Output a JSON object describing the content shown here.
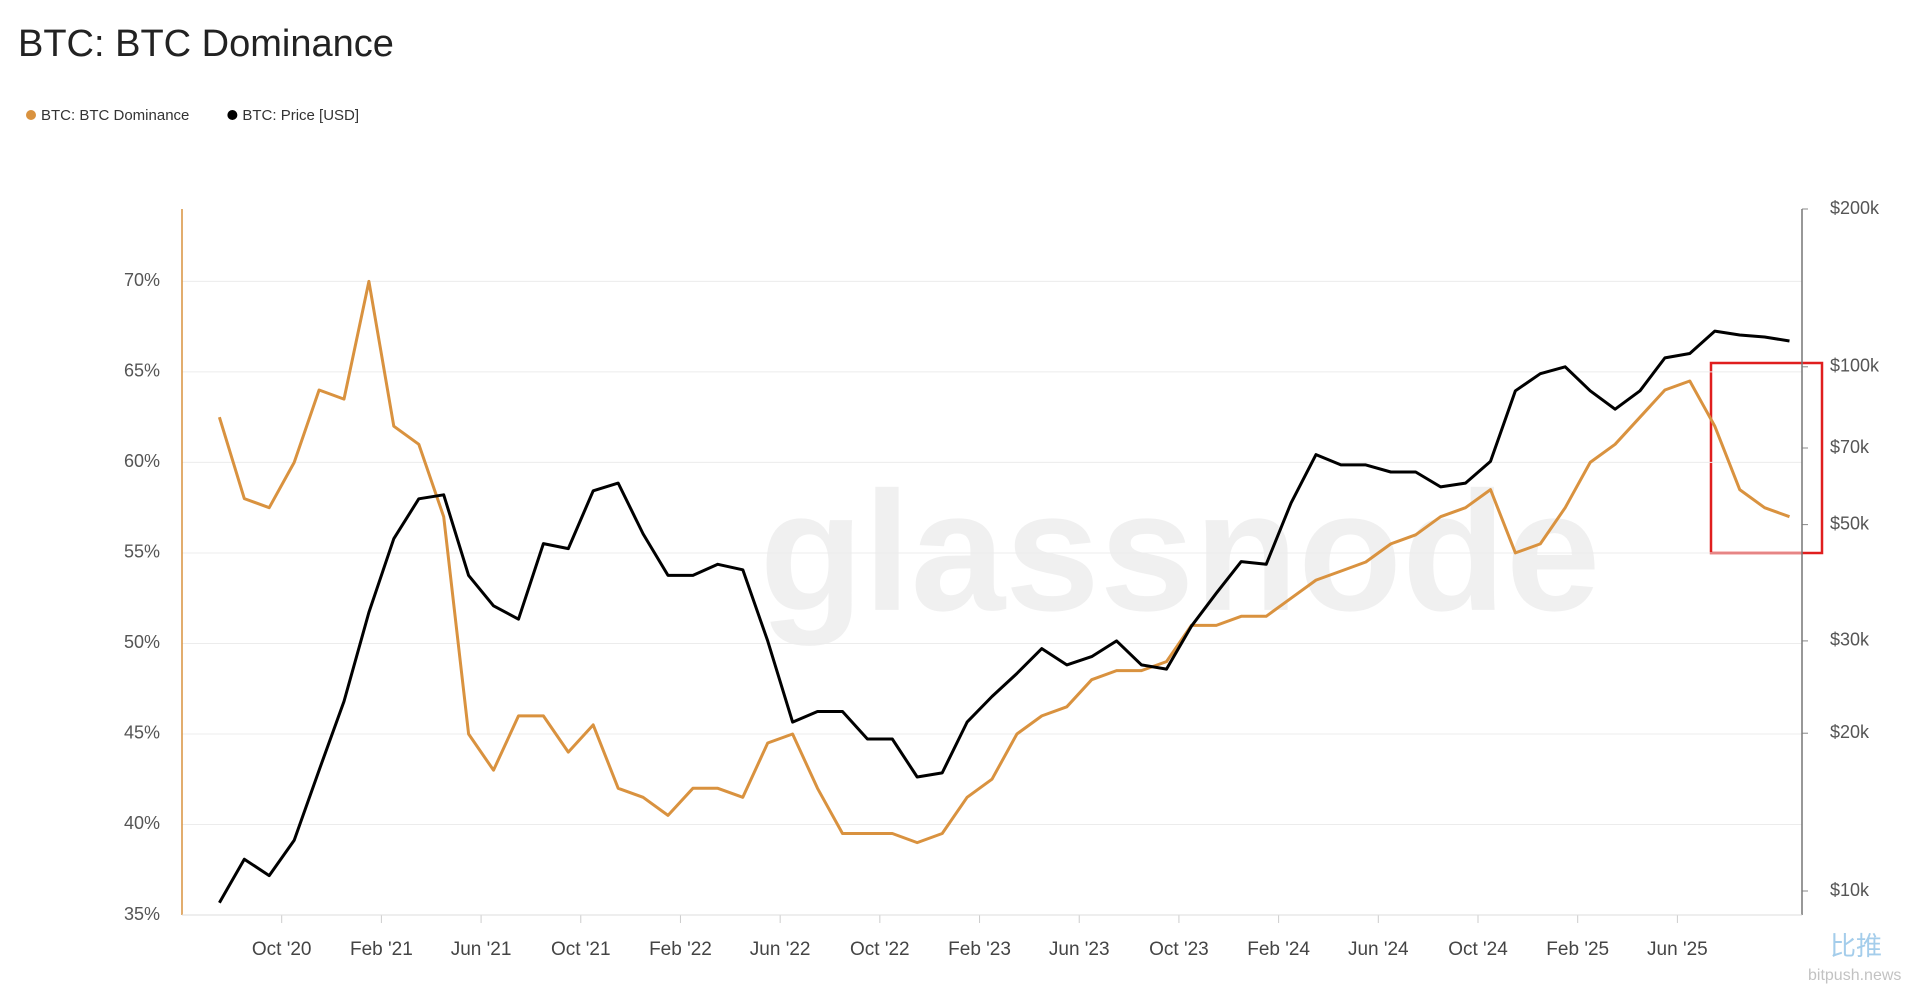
{
  "chart_data": {
    "type": "line",
    "title": "BTC: BTC Dominance",
    "watermark": "glassnode",
    "watermark2": "比推",
    "watermark3": "bitpush.news",
    "x": [
      "2020-07",
      "2020-08",
      "2020-09",
      "2020-10",
      "2020-11",
      "2020-12",
      "2021-01",
      "2021-02",
      "2021-03",
      "2021-04",
      "2021-05",
      "2021-06",
      "2021-07",
      "2021-08",
      "2021-09",
      "2021-10",
      "2021-11",
      "2021-12",
      "2022-01",
      "2022-02",
      "2022-03",
      "2022-04",
      "2022-05",
      "2022-06",
      "2022-07",
      "2022-08",
      "2022-09",
      "2022-10",
      "2022-11",
      "2022-12",
      "2023-01",
      "2023-02",
      "2023-03",
      "2023-04",
      "2023-05",
      "2023-06",
      "2023-07",
      "2023-08",
      "2023-09",
      "2023-10",
      "2023-11",
      "2023-12",
      "2024-01",
      "2024-02",
      "2024-03",
      "2024-04",
      "2024-05",
      "2024-06",
      "2024-07",
      "2024-08",
      "2024-09",
      "2024-10",
      "2024-11",
      "2024-12",
      "2025-01",
      "2025-02",
      "2025-03",
      "2025-04",
      "2025-05",
      "2025-06",
      "2025-07",
      "2025-08",
      "2025-09",
      "2025-10"
    ],
    "xlim": [
      "2020-06",
      "2025-11"
    ],
    "xticks": [
      {
        "value": "2020-10",
        "label": "Oct '20"
      },
      {
        "value": "2021-02",
        "label": "Feb '21"
      },
      {
        "value": "2021-06",
        "label": "Jun '21"
      },
      {
        "value": "2021-10",
        "label": "Oct '21"
      },
      {
        "value": "2022-02",
        "label": "Feb '22"
      },
      {
        "value": "2022-06",
        "label": "Jun '22"
      },
      {
        "value": "2022-10",
        "label": "Oct '22"
      },
      {
        "value": "2023-02",
        "label": "Feb '23"
      },
      {
        "value": "2023-06",
        "label": "Jun '23"
      },
      {
        "value": "2023-10",
        "label": "Oct '23"
      },
      {
        "value": "2024-02",
        "label": "Feb '24"
      },
      {
        "value": "2024-06",
        "label": "Jun '24"
      },
      {
        "value": "2024-10",
        "label": "Oct '24"
      },
      {
        "value": "2025-02",
        "label": "Feb '25"
      },
      {
        "value": "2025-06",
        "label": "Jun '25"
      }
    ],
    "ylim": [
      35,
      74
    ],
    "yticks": [
      {
        "value": 35,
        "label": "35%"
      },
      {
        "value": 40,
        "label": "40%"
      },
      {
        "value": 45,
        "label": "45%"
      },
      {
        "value": 50,
        "label": "50%"
      },
      {
        "value": 55,
        "label": "55%"
      },
      {
        "value": 60,
        "label": "60%"
      },
      {
        "value": 65,
        "label": "65%"
      },
      {
        "value": 70,
        "label": "70%"
      }
    ],
    "y2lim": [
      9000,
      200000
    ],
    "y2log": true,
    "y2ticks": [
      {
        "value": 10000,
        "label": "$10k"
      },
      {
        "value": 20000,
        "label": "$20k"
      },
      {
        "value": 30000,
        "label": "$30k"
      },
      {
        "value": 50000,
        "label": "$50k"
      },
      {
        "value": 70000,
        "label": "$70k"
      },
      {
        "value": 100000,
        "label": "$100k"
      },
      {
        "value": 200000,
        "label": "$200k"
      }
    ],
    "grid": true,
    "series": [
      {
        "name": "BTC: BTC Dominance",
        "color": "#d9923f",
        "values": [
          62.5,
          58,
          57.5,
          60,
          64,
          63.5,
          70,
          62,
          61,
          57,
          45,
          43,
          46,
          46,
          44,
          45.5,
          42,
          41.5,
          40.5,
          42,
          42,
          41.5,
          44.5,
          45,
          42,
          39.5,
          39.5,
          39.5,
          39,
          39.5,
          41.5,
          42.5,
          45,
          46,
          46.5,
          48,
          48.5,
          48.5,
          49,
          51,
          51,
          51.5,
          51.5,
          52.5,
          53.5,
          54,
          54.5,
          55.5,
          56,
          57,
          57.5,
          58.5,
          55,
          55.5,
          57.5,
          60,
          61,
          62.5,
          64,
          64.5,
          62,
          58.5,
          57.5,
          57
        ]
      },
      {
        "name": "BTC: Price [USD]",
        "color": "#000000",
        "axis": "y2",
        "values": [
          9500,
          11500,
          10700,
          12500,
          17000,
          23000,
          34000,
          47000,
          56000,
          57000,
          40000,
          35000,
          33000,
          46000,
          45000,
          58000,
          60000,
          48000,
          40000,
          40000,
          42000,
          41000,
          30000,
          21000,
          22000,
          22000,
          19500,
          19500,
          16500,
          16800,
          21000,
          23500,
          26000,
          29000,
          27000,
          28000,
          30000,
          27000,
          26500,
          32000,
          37000,
          42500,
          42000,
          55000,
          68000,
          65000,
          65000,
          63000,
          63000,
          59000,
          60000,
          66000,
          90000,
          97000,
          100000,
          90000,
          83000,
          90000,
          104000,
          106000,
          117000,
          115000,
          114000,
          112000
        ]
      }
    ]
  }
}
